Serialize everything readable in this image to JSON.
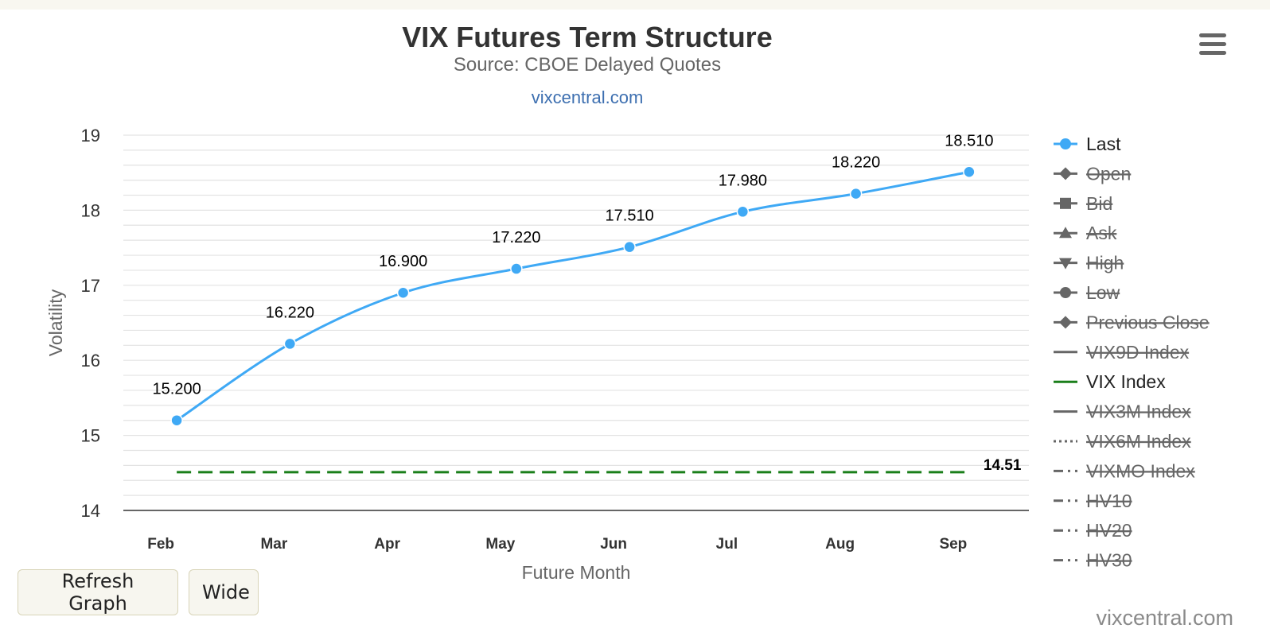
{
  "header": {
    "title": "VIX Futures Term Structure",
    "subtitle": "Source: CBOE Delayed Quotes",
    "site_link": "vixcentral.com"
  },
  "buttons": {
    "refresh_label": "Refresh Graph",
    "wide_label": "Wide"
  },
  "credit": "vixcentral.com",
  "menu": {
    "icon": "hamburger-menu-icon"
  },
  "colors": {
    "last": "#3fa9f5",
    "vix_index": "#1a7f1a",
    "disabled": "#666666",
    "grid": "#e3e3e3",
    "text": "#333333"
  },
  "chart_data": {
    "type": "line",
    "xlabel": "Future Month",
    "ylabel": "Volatility",
    "ylim": [
      14,
      19
    ],
    "yticks": [
      14,
      15,
      16,
      17,
      18,
      19
    ],
    "grid": true,
    "legend_position": "right",
    "categories": [
      "Feb",
      "Mar",
      "Apr",
      "May",
      "Jun",
      "Jul",
      "Aug",
      "Sep"
    ],
    "series": [
      {
        "name": "Last",
        "values": [
          15.2,
          16.22,
          16.9,
          17.22,
          17.51,
          17.98,
          18.22,
          18.51
        ],
        "labels": [
          "15.200",
          "16.220",
          "16.900",
          "17.220",
          "17.510",
          "17.980",
          "18.220",
          "18.510"
        ]
      },
      {
        "name": "VIX Index",
        "value": 14.51,
        "label": "14.51",
        "style": "dashed"
      }
    ],
    "legend": [
      {
        "name": "Last",
        "marker": "circle",
        "line": "solid",
        "enabled": true
      },
      {
        "name": "Open",
        "marker": "diamond",
        "line": "solid",
        "enabled": false
      },
      {
        "name": "Bid",
        "marker": "square",
        "line": "solid",
        "enabled": false
      },
      {
        "name": "Ask",
        "marker": "triangle-up",
        "line": "solid",
        "enabled": false
      },
      {
        "name": "High",
        "marker": "triangle-down",
        "line": "solid",
        "enabled": false
      },
      {
        "name": "Low",
        "marker": "circle",
        "line": "solid",
        "enabled": false
      },
      {
        "name": "Previous Close",
        "marker": "diamond",
        "line": "solid",
        "enabled": false
      },
      {
        "name": "VIX9D Index",
        "marker": "none",
        "line": "solid",
        "enabled": false
      },
      {
        "name": "VIX Index",
        "marker": "none",
        "line": "solid",
        "enabled": true
      },
      {
        "name": "VIX3M Index",
        "marker": "none",
        "line": "solid",
        "enabled": false
      },
      {
        "name": "VIX6M Index",
        "marker": "none",
        "line": "dotted",
        "enabled": false
      },
      {
        "name": "VIXMO Index",
        "marker": "none",
        "line": "dashdot",
        "enabled": false
      },
      {
        "name": "HV10",
        "marker": "none",
        "line": "dashdot",
        "enabled": false
      },
      {
        "name": "HV20",
        "marker": "none",
        "line": "dashdot",
        "enabled": false
      },
      {
        "name": "HV30",
        "marker": "none",
        "line": "dashdot",
        "enabled": false
      }
    ]
  }
}
